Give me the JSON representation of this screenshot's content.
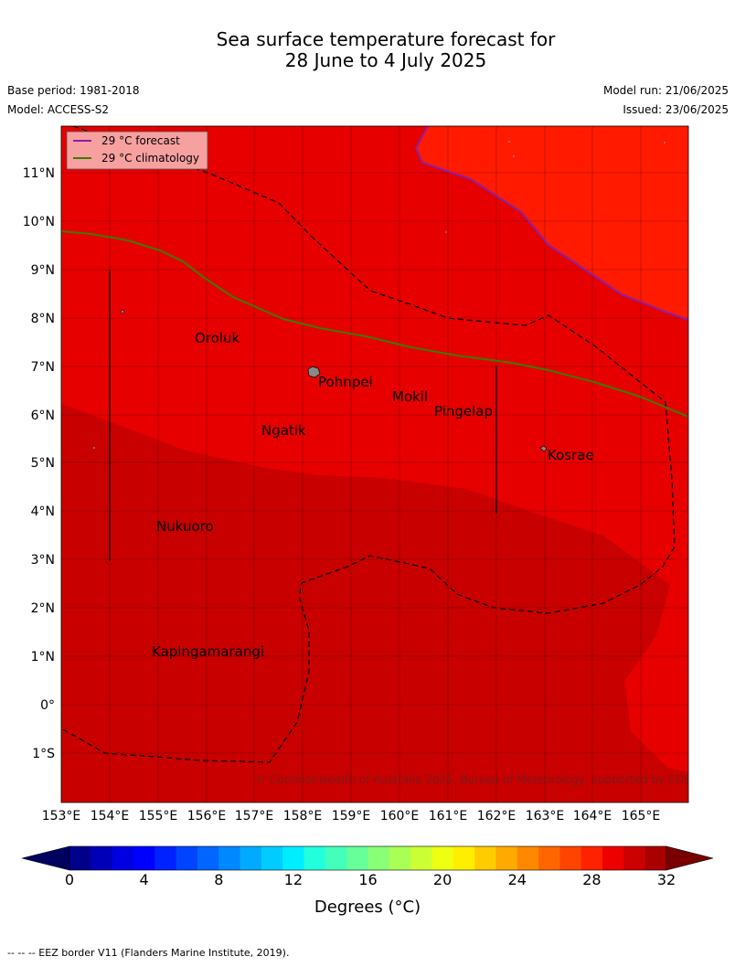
{
  "title": {
    "line1": "Sea surface temperature forecast for",
    "line2": "28 June to 4 July 2025"
  },
  "meta": {
    "base_period": "Base period: 1981-2018",
    "model": "Model: ACCESS-S2",
    "model_run": "Model run: 21/06/2025",
    "issued": "Issued: 23/06/2025"
  },
  "map": {
    "lon_range": [
      153,
      166
    ],
    "lat_range": [
      -2,
      12
    ],
    "lon_ticks": [
      "153°E",
      "154°E",
      "155°E",
      "156°E",
      "157°E",
      "158°E",
      "159°E",
      "160°E",
      "161°E",
      "162°E",
      "163°E",
      "164°E",
      "165°E"
    ],
    "lat_ticks": [
      "1°S",
      "0°",
      "1°N",
      "2°N",
      "3°N",
      "4°N",
      "5°N",
      "6°N",
      "7°N",
      "8°N",
      "9°N",
      "10°N",
      "11°N"
    ],
    "colors": {
      "sea_29_30": "#e60000",
      "sea_30_31": "#c80000",
      "sea_28_29": "#ff1a00",
      "forecast_line": "#8b1fa8",
      "climatology_line": "#3d7a00",
      "land": "#888888"
    },
    "places": [
      {
        "name": "Oroluk",
        "lon": 155.8,
        "lat": 7.5
      },
      {
        "name": "Pohnpei",
        "lon": 158.45,
        "lat": 6.8
      },
      {
        "name": "Mokil",
        "lon": 159.8,
        "lat": 6.25
      },
      {
        "name": "Pingelap",
        "lon": 160.75,
        "lat": 5.95
      },
      {
        "name": "Ngatik",
        "lon": 157.15,
        "lat": 5.55
      },
      {
        "name": "Kosrae",
        "lon": 163.0,
        "lat": 5.05
      },
      {
        "name": "Nukuoro",
        "lon": 154.95,
        "lat": 3.6
      },
      {
        "name": "Kapingamarangi",
        "lon": 154.9,
        "lat": 1.0
      }
    ],
    "legend": {
      "forecast": "29 °C  forecast",
      "climatology": "29 °C  climatology"
    },
    "copyright": "© Commonwealth of Australia 2025, Bureau of Meteorology, supported by COSPPac"
  },
  "colorbar": {
    "ticks": [
      "0",
      "4",
      "8",
      "12",
      "16",
      "20",
      "24",
      "28",
      "32"
    ],
    "unit": "Degrees (°C)",
    "colors": [
      "#00008b",
      "#0000b8",
      "#0000e0",
      "#0000ff",
      "#0022ff",
      "#0044ff",
      "#0066ff",
      "#0088ff",
      "#00aaff",
      "#00ccff",
      "#00eeff",
      "#22ffdd",
      "#44ffbb",
      "#66ff99",
      "#88ff77",
      "#aaff55",
      "#ccff33",
      "#eeff11",
      "#ffee00",
      "#ffcc00",
      "#ffaa00",
      "#ff8800",
      "#ff6600",
      "#ff4400",
      "#ff2200",
      "#ee0000",
      "#cc0000",
      "#aa0000"
    ]
  },
  "footnote": "--  --  -- EEZ border V11 (Flanders Marine Institute, 2019)."
}
